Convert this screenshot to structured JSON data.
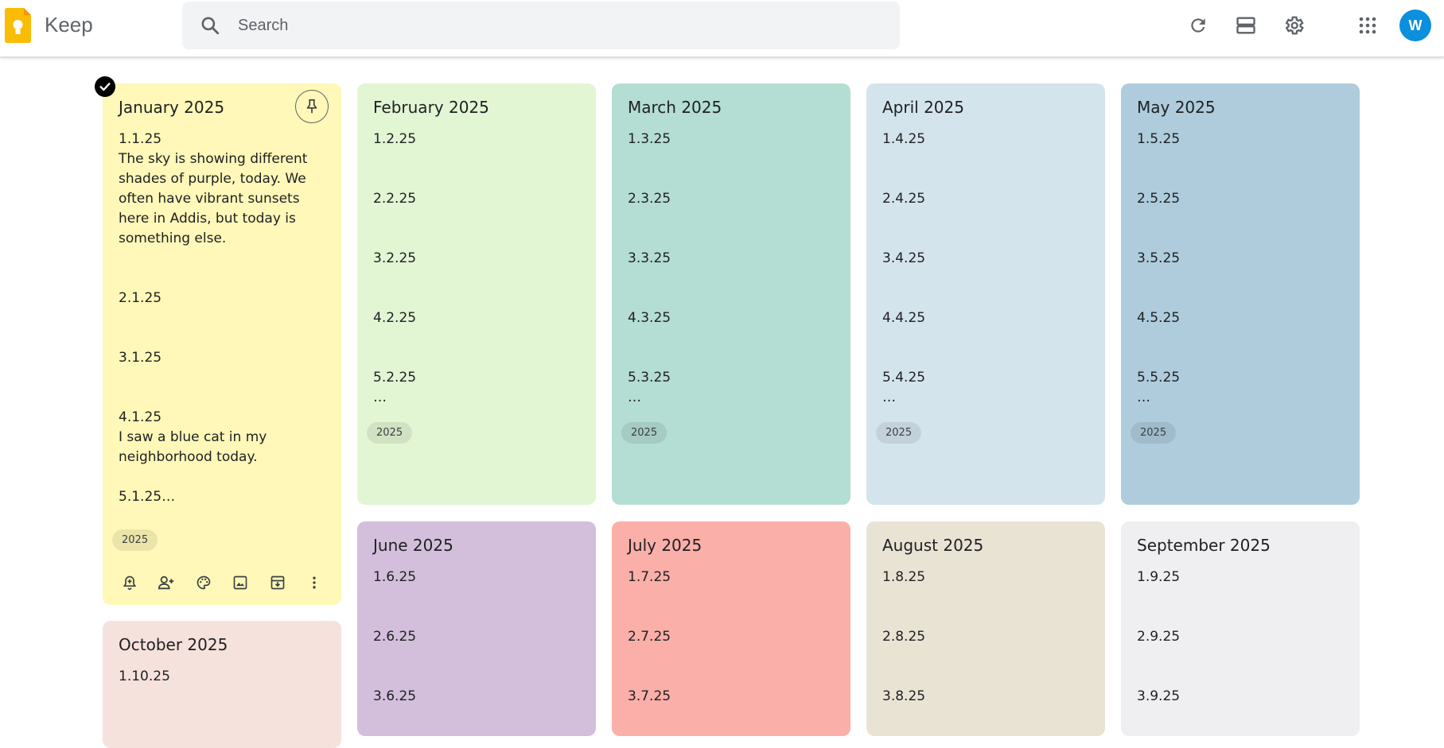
{
  "app": {
    "name": "Keep"
  },
  "search": {
    "placeholder": "Search"
  },
  "header": {
    "avatar_letter": "W"
  },
  "notes": [
    {
      "title": "January 2025",
      "color": "#fff8b8",
      "entries": [
        "1.1.25",
        "The sky is showing different shades of purple, today. We often have vibrant sunsets here in Addis, but today is something else.",
        "2.1.25",
        "3.1.25",
        "4.1.25",
        "I saw a blue cat in my neighborhood today.",
        "5.1.25…"
      ],
      "label": "2025",
      "pinned": false,
      "selected": true
    },
    {
      "title": "February 2025",
      "color": "#e2f6d3",
      "entries": [
        "1.2.25",
        "2.2.25",
        "3.2.25",
        "4.2.25",
        "5.2.25",
        "…"
      ],
      "label": "2025"
    },
    {
      "title": "March 2025",
      "color": "#b4ddd3",
      "entries": [
        "1.3.25",
        "2.3.25",
        "3.3.25",
        "4.3.25",
        "5.3.25",
        "…"
      ],
      "label": "2025"
    },
    {
      "title": "April 2025",
      "color": "#d4e4ed",
      "entries": [
        "1.4.25",
        "2.4.25",
        "3.4.25",
        "4.4.25",
        "5.4.25",
        "…"
      ],
      "label": "2025"
    },
    {
      "title": "May 2025",
      "color": "#aeccdc",
      "entries": [
        "1.5.25",
        "2.5.25",
        "3.5.25",
        "4.5.25",
        "5.5.25",
        "…"
      ],
      "label": "2025"
    },
    {
      "title": "June 2025",
      "color": "#d3bfdb",
      "entries": [
        "1.6.25",
        "2.6.25",
        "3.6.25"
      ]
    },
    {
      "title": "July 2025",
      "color": "#faafa8",
      "entries": [
        "1.7.25",
        "2.7.25",
        "3.7.25"
      ]
    },
    {
      "title": "August 2025",
      "color": "#e9e3d4",
      "entries": [
        "1.8.25",
        "2.8.25",
        "3.8.25"
      ]
    },
    {
      "title": "September 2025",
      "color": "#efeff1",
      "entries": [
        "1.9.25",
        "2.9.25",
        "3.9.25"
      ]
    },
    {
      "title": "October 2025",
      "color": "#f6e2dd",
      "entries": [
        "1.10.25"
      ]
    }
  ],
  "icons": {
    "header": [
      "refresh-icon",
      "list-view-icon",
      "settings-icon",
      "apps-icon"
    ],
    "note_toolbar": [
      "remind-icon",
      "collaborator-icon",
      "palette-icon",
      "image-icon",
      "archive-icon",
      "more-icon"
    ]
  }
}
